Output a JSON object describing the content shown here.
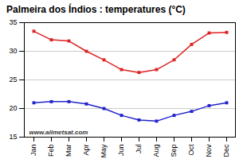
{
  "chart_data": {
    "type": "line",
    "title": "Palmeira dos Índios : temperatures (°C)",
    "categories": [
      "Jan",
      "Feb",
      "Mar",
      "Apr",
      "May",
      "Jun",
      "Jul",
      "Aug",
      "Sep",
      "Oct",
      "Nov",
      "Dec"
    ],
    "series": [
      {
        "color": "#dd2222",
        "marker": "square",
        "values": [
          33.5,
          32.0,
          31.8,
          30.0,
          28.5,
          26.8,
          26.3,
          26.8,
          28.5,
          31.2,
          33.2,
          33.3
        ]
      },
      {
        "color": "#2222cc",
        "marker": "square",
        "values": [
          21.0,
          21.2,
          21.2,
          20.8,
          20.0,
          18.8,
          18.0,
          17.8,
          18.8,
          19.5,
          20.5,
          21.0
        ]
      }
    ],
    "ylim": [
      15,
      35
    ],
    "yticks": [
      15,
      20,
      25,
      30,
      35
    ],
    "grid": true,
    "annotations": [
      "www.allmetsat.com"
    ]
  }
}
